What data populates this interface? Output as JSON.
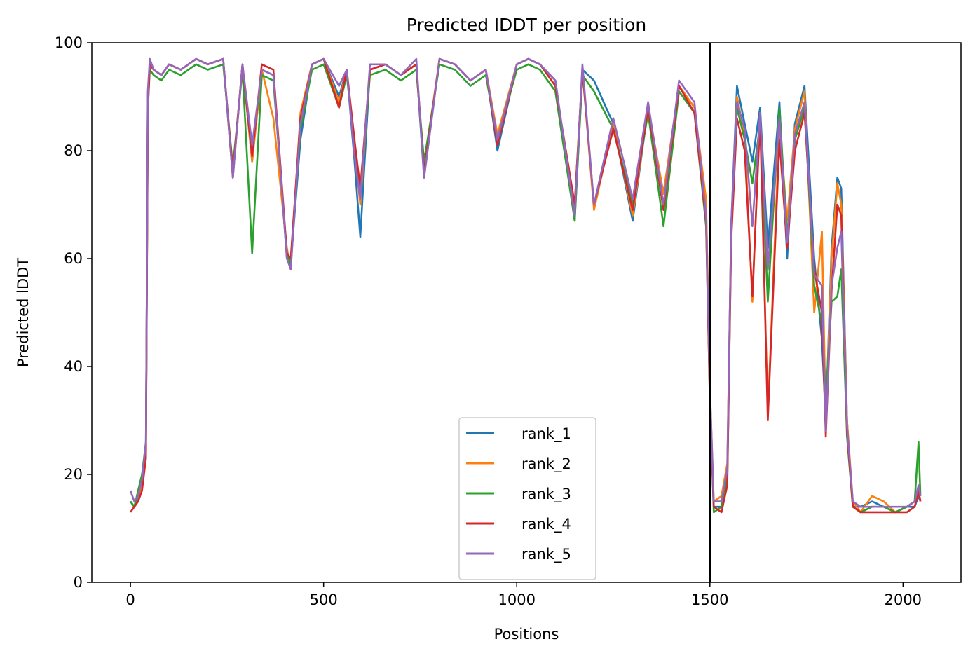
{
  "chart_data": {
    "type": "line",
    "title": "Predicted lDDT per position",
    "xlabel": "Positions",
    "ylabel": "Predicted lDDT",
    "xlim": [
      -100,
      2150
    ],
    "ylim": [
      0,
      100
    ],
    "xticks": [
      0,
      500,
      1000,
      1500,
      2000
    ],
    "yticks": [
      0,
      20,
      40,
      60,
      80,
      100
    ],
    "vline_x": 1500,
    "vline_color": "#000000",
    "legend_position": "lower center",
    "grid": false,
    "x": [
      0,
      10,
      20,
      30,
      40,
      45,
      50,
      60,
      80,
      100,
      130,
      170,
      200,
      240,
      265,
      290,
      315,
      340,
      370,
      405,
      415,
      440,
      470,
      500,
      540,
      560,
      580,
      595,
      620,
      660,
      700,
      740,
      760,
      800,
      840,
      880,
      920,
      950,
      1000,
      1030,
      1060,
      1100,
      1150,
      1170,
      1200,
      1250,
      1300,
      1340,
      1380,
      1420,
      1460,
      1490,
      1500,
      1510,
      1530,
      1545,
      1555,
      1570,
      1590,
      1610,
      1630,
      1650,
      1680,
      1700,
      1720,
      1745,
      1770,
      1790,
      1800,
      1815,
      1830,
      1840,
      1855,
      1870,
      1890,
      1920,
      1950,
      1980,
      2010,
      2030,
      2040,
      2045
    ],
    "series": [
      {
        "name": "rank_1",
        "color": "#1f77b4",
        "values": [
          15,
          14,
          16,
          19,
          25,
          90,
          96,
          95,
          94,
          96,
          95,
          97,
          96,
          97,
          75,
          96,
          78,
          95,
          94,
          60,
          59,
          82,
          96,
          97,
          90,
          95,
          78,
          64,
          95,
          96,
          94,
          96,
          75,
          97,
          96,
          93,
          95,
          80,
          96,
          97,
          96,
          93,
          67,
          95,
          93,
          85,
          67,
          88,
          72,
          92,
          88,
          70,
          35,
          14,
          14,
          20,
          66,
          92,
          85,
          78,
          88,
          62,
          89,
          60,
          85,
          92,
          60,
          45,
          30,
          62,
          75,
          73,
          30,
          14,
          14,
          15,
          14,
          13,
          14,
          14,
          16,
          15
        ]
      },
      {
        "name": "rank_2",
        "color": "#ff7f0e",
        "values": [
          15,
          14,
          15,
          18,
          24,
          89,
          96,
          95,
          94,
          96,
          95,
          97,
          96,
          97,
          75,
          96,
          78,
          95,
          86,
          62,
          58,
          87,
          96,
          97,
          89,
          95,
          80,
          70,
          95,
          96,
          94,
          96,
          77,
          97,
          96,
          93,
          95,
          83,
          96,
          97,
          96,
          92,
          70,
          95,
          69,
          85,
          68,
          88,
          72,
          92,
          88,
          71,
          36,
          15,
          16,
          22,
          65,
          90,
          83,
          52,
          87,
          31,
          85,
          67,
          84,
          91,
          50,
          65,
          30,
          60,
          74,
          70,
          30,
          15,
          13,
          16,
          15,
          13,
          14,
          15,
          17,
          15
        ]
      },
      {
        "name": "rank_3",
        "color": "#2ca02c",
        "values": [
          15,
          14,
          17,
          20,
          26,
          88,
          95,
          94,
          93,
          95,
          94,
          96,
          95,
          96,
          77,
          95,
          61,
          94,
          93,
          61,
          59,
          84,
          95,
          96,
          88,
          94,
          81,
          72,
          94,
          95,
          93,
          95,
          78,
          96,
          95,
          92,
          94,
          82,
          95,
          96,
          95,
          91,
          67,
          94,
          91,
          84,
          70,
          87,
          66,
          91,
          87,
          66,
          34,
          13,
          14,
          19,
          64,
          88,
          82,
          74,
          85,
          52,
          88,
          64,
          82,
          88,
          55,
          48,
          34,
          52,
          53,
          58,
          27,
          14,
          13,
          14,
          14,
          13,
          14,
          15,
          26,
          16
        ]
      },
      {
        "name": "rank_4",
        "color": "#d62728",
        "values": [
          13,
          14,
          15,
          17,
          23,
          87,
          96,
          95,
          94,
          96,
          95,
          97,
          96,
          97,
          76,
          96,
          79,
          96,
          95,
          61,
          60,
          86,
          96,
          97,
          88,
          95,
          82,
          73,
          95,
          96,
          94,
          96,
          76,
          97,
          96,
          93,
          95,
          81,
          96,
          97,
          96,
          92,
          70,
          95,
          70,
          84,
          69,
          88,
          69,
          92,
          87,
          67,
          33,
          14,
          13,
          18,
          63,
          86,
          80,
          53,
          86,
          30,
          82,
          62,
          80,
          87,
          58,
          50,
          27,
          54,
          70,
          68,
          28,
          14,
          13,
          13,
          13,
          13,
          13,
          14,
          17,
          15
        ]
      },
      {
        "name": "rank_5",
        "color": "#9467bd",
        "values": [
          17,
          15,
          16,
          19,
          26,
          91,
          97,
          95,
          94,
          96,
          95,
          97,
          96,
          97,
          75,
          96,
          81,
          95,
          94,
          60,
          58,
          85,
          96,
          97,
          92,
          95,
          79,
          71,
          96,
          96,
          94,
          97,
          75,
          97,
          96,
          93,
          95,
          82,
          96,
          97,
          96,
          93,
          68,
          96,
          70,
          86,
          71,
          89,
          70,
          93,
          89,
          68,
          36,
          15,
          15,
          21,
          66,
          89,
          84,
          66,
          87,
          58,
          86,
          63,
          83,
          89,
          57,
          55,
          28,
          55,
          62,
          65,
          29,
          15,
          14,
          14,
          14,
          14,
          14,
          15,
          18,
          16
        ]
      }
    ]
  }
}
